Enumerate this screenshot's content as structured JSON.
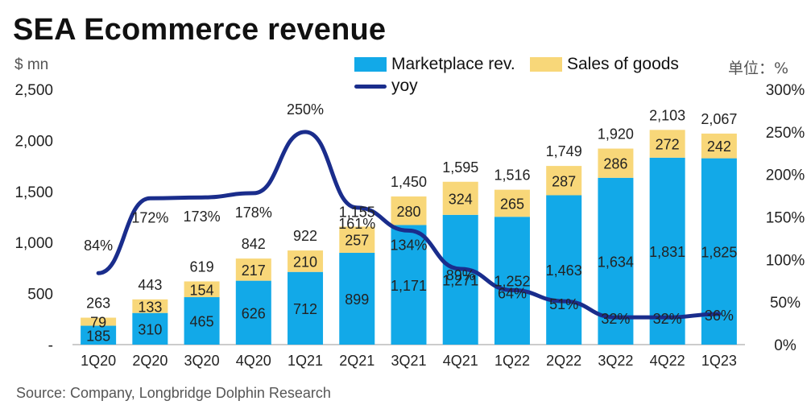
{
  "title": "SEA Ecommerce revenue",
  "unit_left": "$ mn",
  "unit_right": "单位：%",
  "source": "Source: Company, Longbridge Dolphin Research",
  "colors": {
    "marketplace": "#12a9e8",
    "goods": "#f8d779",
    "yoy": "#1a2d8c",
    "axis": "#9a9a9a"
  },
  "legend": {
    "marketplace": "Marketplace rev.",
    "goods": "Sales of goods",
    "yoy": "yoy"
  },
  "chart_data": {
    "type": "bar",
    "stacked": true,
    "categories": [
      "1Q20",
      "2Q20",
      "3Q20",
      "4Q20",
      "1Q21",
      "2Q21",
      "3Q21",
      "4Q21",
      "1Q22",
      "2Q22",
      "3Q22",
      "4Q22",
      "1Q23"
    ],
    "series": [
      {
        "name": "Marketplace rev.",
        "values": [
          185,
          310,
          465,
          626,
          712,
          899,
          1171,
          1271,
          1252,
          1463,
          1634,
          1831,
          1825
        ],
        "labels": [
          "185",
          "310",
          "465",
          "626",
          "712",
          "899",
          "1,171",
          "1,271",
          "1,252",
          "1,463",
          "1,634",
          "1,831",
          "1,825"
        ]
      },
      {
        "name": "Sales of goods",
        "values": [
          79,
          133,
          154,
          217,
          210,
          257,
          280,
          324,
          265,
          287,
          286,
          272,
          242
        ],
        "labels": [
          "79",
          "133",
          "154",
          "217",
          "210",
          "257",
          "280",
          "324",
          "265",
          "287",
          "286",
          "272",
          "242"
        ]
      }
    ],
    "totals": [
      263,
      443,
      619,
      842,
      922,
      1155,
      1450,
      1595,
      1516,
      1749,
      1920,
      2103,
      2067
    ],
    "total_labels": [
      "263",
      "443",
      "619",
      "842",
      "922",
      "1,155",
      "1,450",
      "1,595",
      "1,516",
      "1,749",
      "1,920",
      "2,103",
      "2,067"
    ],
    "line_series": {
      "name": "yoy",
      "axis": "right",
      "values": [
        84,
        172,
        173,
        178,
        250,
        161,
        134,
        89,
        64,
        51,
        32,
        32,
        36
      ],
      "labels": [
        "84%",
        "172%",
        "173%",
        "178%",
        "250%",
        "161%",
        "134%",
        "89%",
        "64%",
        "51%",
        "32%",
        "32%",
        "36%"
      ]
    },
    "y_left": {
      "min": 0,
      "max": 2500,
      "ticks": [
        0,
        500,
        1000,
        1500,
        2000,
        2500
      ],
      "tick_labels": [
        "-",
        "500",
        "1,000",
        "1,500",
        "2,000",
        "2,500"
      ]
    },
    "y_right": {
      "min": 0,
      "max": 300,
      "ticks": [
        0,
        50,
        100,
        150,
        200,
        250,
        300
      ],
      "tick_labels": [
        "0%",
        "50%",
        "100%",
        "150%",
        "200%",
        "250%",
        "300%"
      ]
    },
    "grid": false,
    "legend_position": "top"
  }
}
